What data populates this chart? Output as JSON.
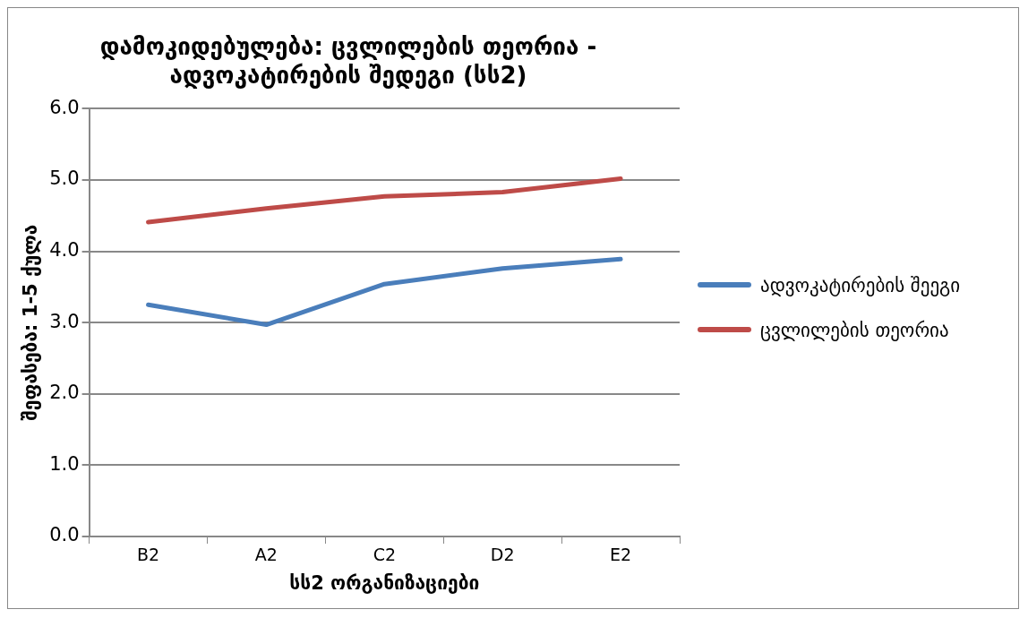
{
  "chart_data": {
    "type": "line",
    "title": "დამოკიდებულება: ცვლილების თეორია - ადვოკატირების შედეგი (სს2)",
    "xlabel": "სს2 ორგანიზაციები",
    "ylabel": "შეფასება: 1-5 ქულა",
    "categories": [
      "B2",
      "A2",
      "C2",
      "D2",
      "E2"
    ],
    "series": [
      {
        "name": "ადვოკატირების შეეგი",
        "color": "#4a7ebb",
        "values": [
          3.25,
          2.97,
          3.54,
          3.76,
          3.89
        ]
      },
      {
        "name": "ცვლილების თეორია",
        "color": "#be4b48",
        "values": [
          4.41,
          4.6,
          4.77,
          4.83,
          5.02
        ]
      }
    ],
    "ylim": [
      0,
      6
    ],
    "yticks": [
      {
        "value": 0,
        "label": "0.0"
      },
      {
        "value": 1,
        "label": "1.0"
      },
      {
        "value": 2,
        "label": "2.0"
      },
      {
        "value": 3,
        "label": "3.0"
      },
      {
        "value": 4,
        "label": "4.0"
      },
      {
        "value": 5,
        "label": "5.0"
      },
      {
        "value": 6,
        "label": "6.0"
      }
    ],
    "grid": "y",
    "legend": "right",
    "marker": "none",
    "line_style": "solid"
  }
}
